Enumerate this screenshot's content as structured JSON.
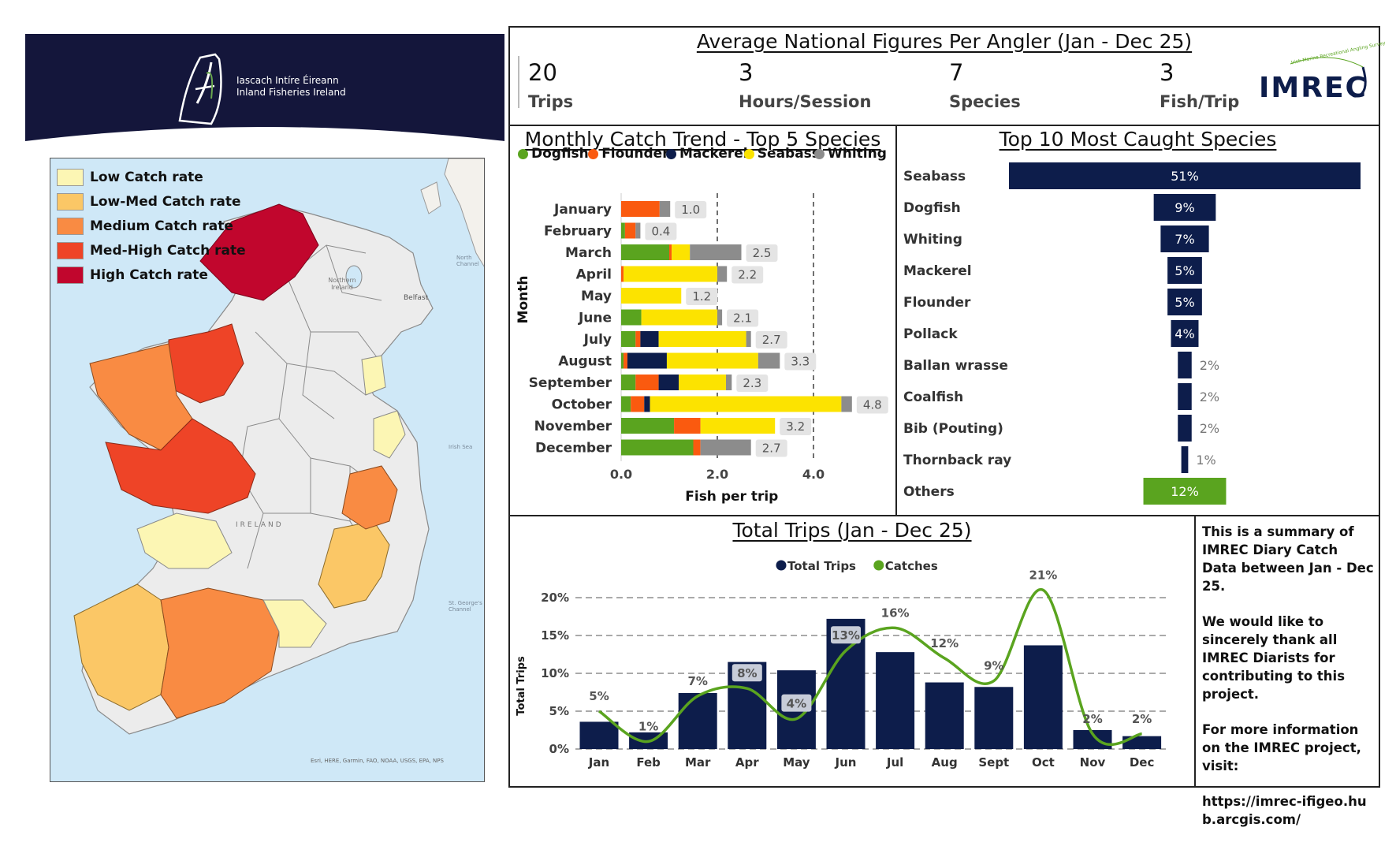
{
  "header": {
    "org_name_irish": "Iascach Intíre Éireann",
    "org_name_english": "Inland Fisheries Ireland",
    "bg_color": "#14163b"
  },
  "map": {
    "legend": [
      {
        "label": "Low Catch rate",
        "color": "#fcf6b4"
      },
      {
        "label": "Low-Med Catch rate",
        "color": "#fbc766"
      },
      {
        "label": "Medium Catch rate",
        "color": "#f98b43"
      },
      {
        "label": "Med-High Catch rate",
        "color": "#ee4427"
      },
      {
        "label": "High Catch rate",
        "color": "#c1062d"
      }
    ],
    "labels": {
      "northern_ireland": "Northern Ireland",
      "belfast": "Belfast",
      "ireland": "IRELAND",
      "north_channel": "North Channel",
      "irish_sea": "Irish Sea",
      "st_georges": "St. George's Channel",
      "attribution": "Esri, HERE, Garmin, FAO, NOAA, USGS, EPA, NPS"
    },
    "sea_color": "#cfe8f7"
  },
  "metrics": {
    "title": "Average National Figures Per Angler (Jan - Dec 25)",
    "items": [
      {
        "value": "20",
        "label": "Trips"
      },
      {
        "value": "3",
        "label": "Hours/Session"
      },
      {
        "value": "7",
        "label": "Species"
      },
      {
        "value": "3",
        "label": "Fish/Trip"
      }
    ],
    "logo_text": "IMREC",
    "logo_tagline": "Irish Marine Recreational Angling Survey"
  },
  "monthly": {
    "title": "Monthly Catch Trend - Top 5 Species"
  },
  "top10": {
    "title": "Top 10 Most Caught Species"
  },
  "trips": {
    "title": "Total Trips (Jan - Dec 25)"
  },
  "summary": {
    "p1": "This is a summary of IMREC Diary Catch Data between Jan - Dec 25.",
    "p2": "We would like to sincerely thank all IMREC Diarists for contributing to this project.",
    "p3": "For more information on the IMREC project, visit:",
    "p4": "https://imrec-ifigeo.hub.arcgis.com/"
  },
  "chart_data": [
    {
      "type": "bar",
      "orientation": "horizontal",
      "stacked": true,
      "title": "Monthly Catch Trend - Top 5 Species",
      "xlabel": "Fish per trip",
      "ylabel": "Month",
      "xlim": [
        0,
        5
      ],
      "xticks": [
        "0.0",
        "2.0",
        "4.0"
      ],
      "reference_lines": [
        2.0,
        4.0
      ],
      "legend_position": "top",
      "categories": [
        "January",
        "February",
        "March",
        "April",
        "May",
        "June",
        "July",
        "August",
        "September",
        "October",
        "November",
        "December"
      ],
      "series": [
        {
          "name": "Dogfish",
          "color": "#5aa41f",
          "values": [
            0,
            0.08,
            1.0,
            0,
            0,
            0.42,
            0.3,
            0.05,
            0.3,
            0.2,
            1.1,
            1.5
          ]
        },
        {
          "name": "Flounder",
          "color": "#fa5a0f",
          "values": [
            0.8,
            0.22,
            0.05,
            0.05,
            0,
            0,
            0.1,
            0.08,
            0.48,
            0.28,
            0.55,
            0.15
          ]
        },
        {
          "name": "Mackerel",
          "color": "#0d1d4b",
          "values": [
            0,
            0,
            0,
            0,
            0,
            0,
            0.38,
            0.82,
            0.42,
            0.12,
            0,
            0
          ]
        },
        {
          "name": "Seabass",
          "color": "#fce300",
          "values": [
            0,
            0,
            0.38,
            1.95,
            1.25,
            1.58,
            1.82,
            1.9,
            0.98,
            3.98,
            1.55,
            0
          ]
        },
        {
          "name": "Whiting",
          "color": "#8c8c8c",
          "values": [
            0.22,
            0.1,
            1.07,
            0.2,
            0,
            0.1,
            0.1,
            0.45,
            0.12,
            0.22,
            0,
            1.05
          ]
        }
      ],
      "totals": [
        "1.0",
        "0.4",
        "2.5",
        "2.2",
        "1.2",
        "2.1",
        "2.7",
        "3.3",
        "2.3",
        "4.8",
        "3.2",
        "2.7"
      ]
    },
    {
      "type": "bar",
      "orientation": "horizontal",
      "title": "Top 10 Most Caught Species",
      "categories": [
        "Seabass",
        "Dogfish",
        "Whiting",
        "Mackerel",
        "Flounder",
        "Pollack",
        "Ballan wrasse",
        "Coalfish",
        "Bib (Pouting)",
        "Thornback ray",
        "Others"
      ],
      "values": [
        51,
        9,
        7,
        5,
        5,
        4,
        2,
        2,
        2,
        1,
        12
      ],
      "labels": [
        "51%",
        "9%",
        "7%",
        "5%",
        "5%",
        "4%",
        "2%",
        "2%",
        "2%",
        "1%",
        "12%"
      ],
      "colors": {
        "bar": "#0d1d4b",
        "others": "#5aa41f"
      }
    },
    {
      "type": "bar",
      "title": "Total Trips (Jan - Dec 25)",
      "ylabel": "Total Trips",
      "ylim": [
        0,
        22
      ],
      "yticks": [
        "0%",
        "5%",
        "10%",
        "15%",
        "20%"
      ],
      "legend_position": "top",
      "categories": [
        "Jan",
        "Feb",
        "Mar",
        "Apr",
        "May",
        "Jun",
        "Jul",
        "Aug",
        "Sept",
        "Oct",
        "Nov",
        "Dec"
      ],
      "series": [
        {
          "name": "Total Trips",
          "type": "bar",
          "color": "#0d1d4b",
          "values": [
            3.6,
            2.2,
            7.4,
            11.5,
            10.4,
            17.2,
            12.8,
            8.8,
            8.2,
            13.7,
            2.5,
            1.7
          ]
        },
        {
          "name": "Catches",
          "type": "line",
          "color": "#5aa41f",
          "values": [
            5,
            1,
            7,
            8,
            4,
            13,
            16,
            12,
            9,
            21,
            2,
            2
          ],
          "labels": [
            "5%",
            "1%",
            "7%",
            "8%",
            "4%",
            "13%",
            "16%",
            "12%",
            "9%",
            "21%",
            "2%",
            "2%"
          ]
        }
      ]
    }
  ]
}
